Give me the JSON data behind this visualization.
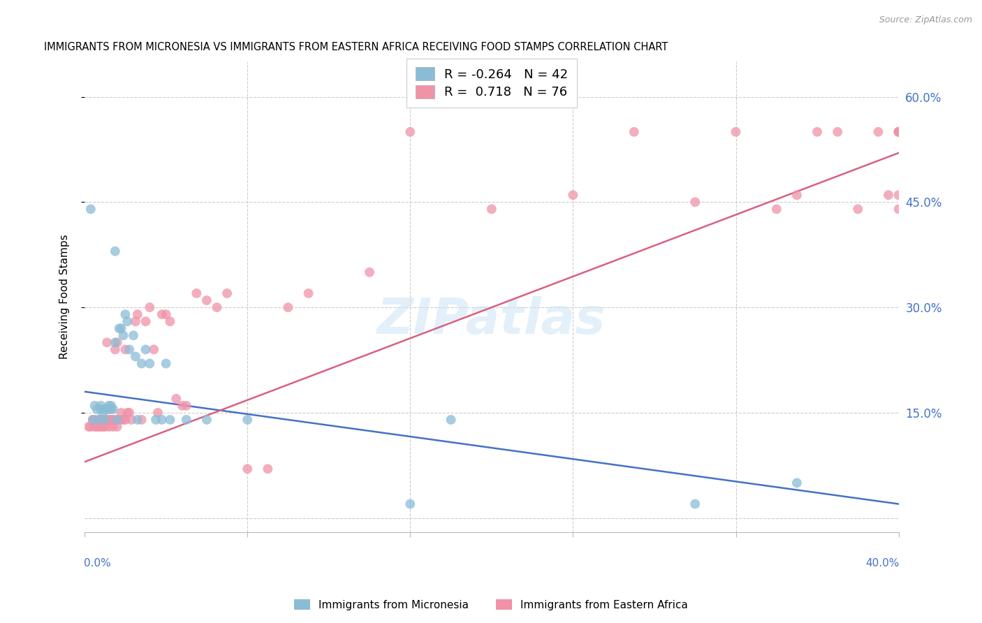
{
  "title": "IMMIGRANTS FROM MICRONESIA VS IMMIGRANTS FROM EASTERN AFRICA RECEIVING FOOD STAMPS CORRELATION CHART",
  "source": "Source: ZipAtlas.com",
  "ylabel": "Receiving Food Stamps",
  "right_yticklabels": [
    "15.0%",
    "30.0%",
    "45.0%",
    "60.0%"
  ],
  "right_ytick_vals": [
    0.15,
    0.3,
    0.45,
    0.6
  ],
  "watermark": "ZIPatlas",
  "micronesia_color": "#8bbcd6",
  "eastern_africa_color": "#f093a8",
  "micronesia_line_color": "#4472c4",
  "eastern_africa_line_color": "#d96080",
  "xlim": [
    0.0,
    0.4
  ],
  "ylim": [
    -0.02,
    0.65
  ],
  "micronesia_points_x": [
    0.003,
    0.004,
    0.005,
    0.006,
    0.007,
    0.008,
    0.008,
    0.009,
    0.01,
    0.01,
    0.011,
    0.012,
    0.012,
    0.013,
    0.013,
    0.014,
    0.015,
    0.015,
    0.016,
    0.017,
    0.018,
    0.019,
    0.02,
    0.021,
    0.022,
    0.024,
    0.025,
    0.026,
    0.028,
    0.03,
    0.032,
    0.035,
    0.038,
    0.04,
    0.042,
    0.05,
    0.06,
    0.08,
    0.16,
    0.18,
    0.3,
    0.35
  ],
  "micronesia_points_y": [
    0.44,
    0.14,
    0.16,
    0.155,
    0.14,
    0.155,
    0.16,
    0.15,
    0.155,
    0.14,
    0.155,
    0.16,
    0.155,
    0.155,
    0.16,
    0.155,
    0.25,
    0.38,
    0.14,
    0.27,
    0.27,
    0.26,
    0.29,
    0.28,
    0.24,
    0.26,
    0.23,
    0.14,
    0.22,
    0.24,
    0.22,
    0.14,
    0.14,
    0.22,
    0.14,
    0.14,
    0.14,
    0.14,
    0.02,
    0.14,
    0.02,
    0.05
  ],
  "eastern_africa_points_x": [
    0.002,
    0.003,
    0.004,
    0.005,
    0.005,
    0.006,
    0.007,
    0.007,
    0.008,
    0.008,
    0.009,
    0.009,
    0.01,
    0.01,
    0.011,
    0.011,
    0.012,
    0.012,
    0.013,
    0.013,
    0.014,
    0.014,
    0.015,
    0.015,
    0.016,
    0.016,
    0.017,
    0.018,
    0.018,
    0.019,
    0.02,
    0.02,
    0.021,
    0.022,
    0.023,
    0.025,
    0.026,
    0.028,
    0.03,
    0.032,
    0.034,
    0.036,
    0.038,
    0.04,
    0.042,
    0.045,
    0.048,
    0.05,
    0.055,
    0.06,
    0.065,
    0.07,
    0.08,
    0.09,
    0.1,
    0.11,
    0.14,
    0.16,
    0.2,
    0.24,
    0.27,
    0.3,
    0.32,
    0.34,
    0.35,
    0.36,
    0.37,
    0.38,
    0.39,
    0.395,
    0.4,
    0.4,
    0.4,
    0.4,
    0.4,
    0.4
  ],
  "eastern_africa_points_y": [
    0.13,
    0.13,
    0.14,
    0.13,
    0.14,
    0.13,
    0.13,
    0.14,
    0.13,
    0.14,
    0.14,
    0.13,
    0.13,
    0.14,
    0.14,
    0.25,
    0.14,
    0.13,
    0.14,
    0.14,
    0.14,
    0.13,
    0.14,
    0.24,
    0.13,
    0.25,
    0.14,
    0.14,
    0.15,
    0.14,
    0.14,
    0.24,
    0.15,
    0.15,
    0.14,
    0.28,
    0.29,
    0.14,
    0.28,
    0.3,
    0.24,
    0.15,
    0.29,
    0.29,
    0.28,
    0.17,
    0.16,
    0.16,
    0.32,
    0.31,
    0.3,
    0.32,
    0.07,
    0.07,
    0.3,
    0.32,
    0.35,
    0.55,
    0.44,
    0.46,
    0.55,
    0.45,
    0.55,
    0.44,
    0.46,
    0.55,
    0.55,
    0.44,
    0.55,
    0.46,
    0.44,
    0.46,
    0.55,
    0.55,
    0.55,
    0.55
  ]
}
